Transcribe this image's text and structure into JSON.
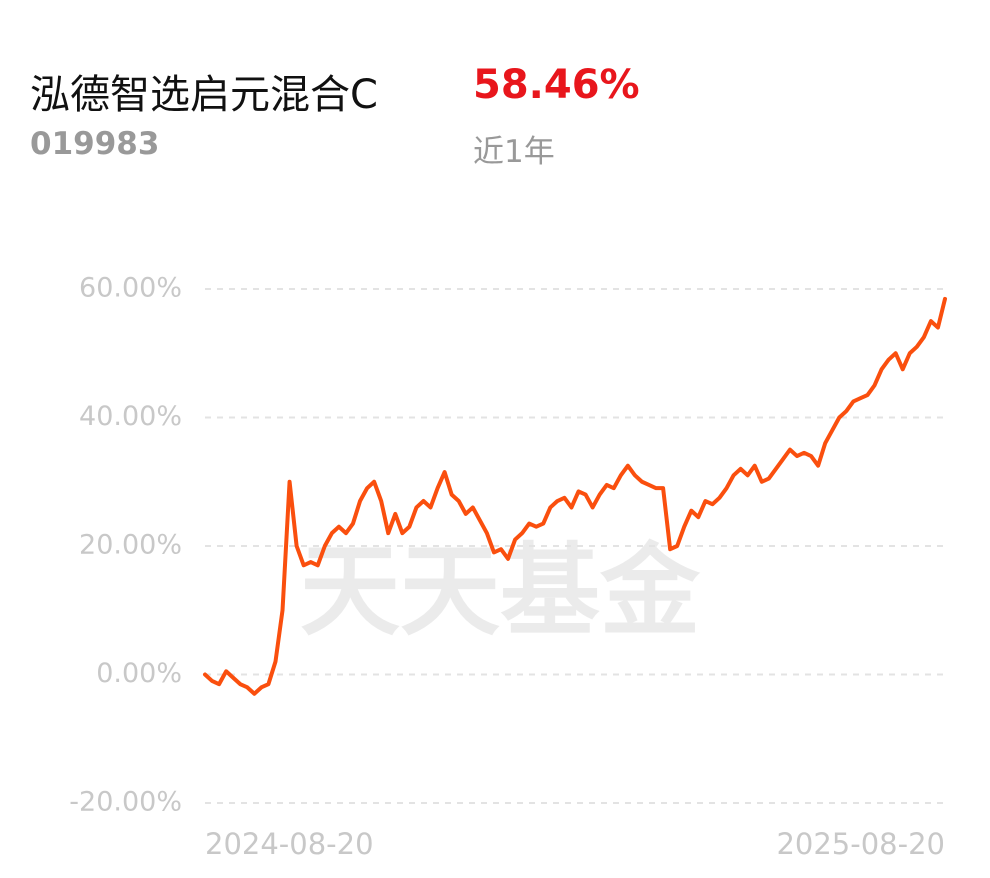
{
  "header": {
    "title": "泓德智选启元混合C",
    "return": "58.46%",
    "code": "019983",
    "period": "近1年"
  },
  "chart_data": {
    "type": "line",
    "watermark": "天天基金",
    "color": "#fa4f0e",
    "categories": [
      "2024-08-20",
      null,
      null,
      null,
      null,
      null,
      null,
      null,
      null,
      null,
      null,
      null,
      null,
      null,
      null,
      null,
      null,
      null,
      null,
      null,
      null,
      null,
      null,
      null,
      null,
      null,
      null,
      null,
      null,
      null,
      null,
      null,
      null,
      null,
      null,
      null,
      null,
      null,
      null,
      null,
      null,
      null,
      null,
      null,
      null,
      null,
      null,
      null,
      null,
      null,
      null,
      null,
      null,
      null,
      null,
      null,
      null,
      null,
      null,
      null,
      null,
      null,
      null,
      null,
      null,
      null,
      null,
      null,
      null,
      null,
      null,
      null,
      null,
      null,
      null,
      null,
      null,
      null,
      null,
      null,
      null,
      null,
      null,
      null,
      null,
      null,
      null,
      null,
      null,
      null,
      null,
      null,
      null,
      null,
      null,
      null,
      null,
      null,
      null,
      null,
      null,
      null,
      null,
      null,
      null,
      "2025-08-20"
    ],
    "values": [
      0,
      -1,
      -1.5,
      0.5,
      -0.5,
      -1.5,
      -2,
      -3,
      -2,
      -1.5,
      2,
      10,
      30,
      20,
      17,
      17.5,
      17,
      20,
      22,
      23,
      22,
      23.5,
      27,
      29,
      30,
      27,
      22,
      25,
      22,
      23,
      26,
      27,
      26,
      29,
      31.5,
      28,
      27,
      25,
      26,
      24,
      22,
      19,
      19.5,
      18,
      21,
      22,
      23.5,
      23,
      23.5,
      26,
      27,
      27.5,
      26,
      28.5,
      28,
      26,
      28,
      29.5,
      29,
      31,
      32.5,
      31,
      30,
      29.5,
      29,
      29,
      19.5,
      20,
      23,
      25.5,
      24.5,
      27,
      26.5,
      27.5,
      29,
      31,
      32,
      31,
      32.5,
      30,
      30.5,
      32,
      33.5,
      35,
      34,
      34.5,
      34,
      32.5,
      36,
      38,
      40,
      41,
      42.5,
      43,
      43.5,
      45,
      47.5,
      49,
      50,
      47.5,
      50,
      51,
      52.5,
      55,
      54,
      58.46
    ],
    "ylim": [
      -20,
      60
    ],
    "yticks": [
      {
        "value": 60,
        "label": "60.00%"
      },
      {
        "value": 40,
        "label": "40.00%"
      },
      {
        "value": 20,
        "label": "20.00%"
      },
      {
        "value": 0,
        "label": "0.00%"
      },
      {
        "value": -20,
        "label": "-20.00%"
      }
    ],
    "grid": true
  }
}
